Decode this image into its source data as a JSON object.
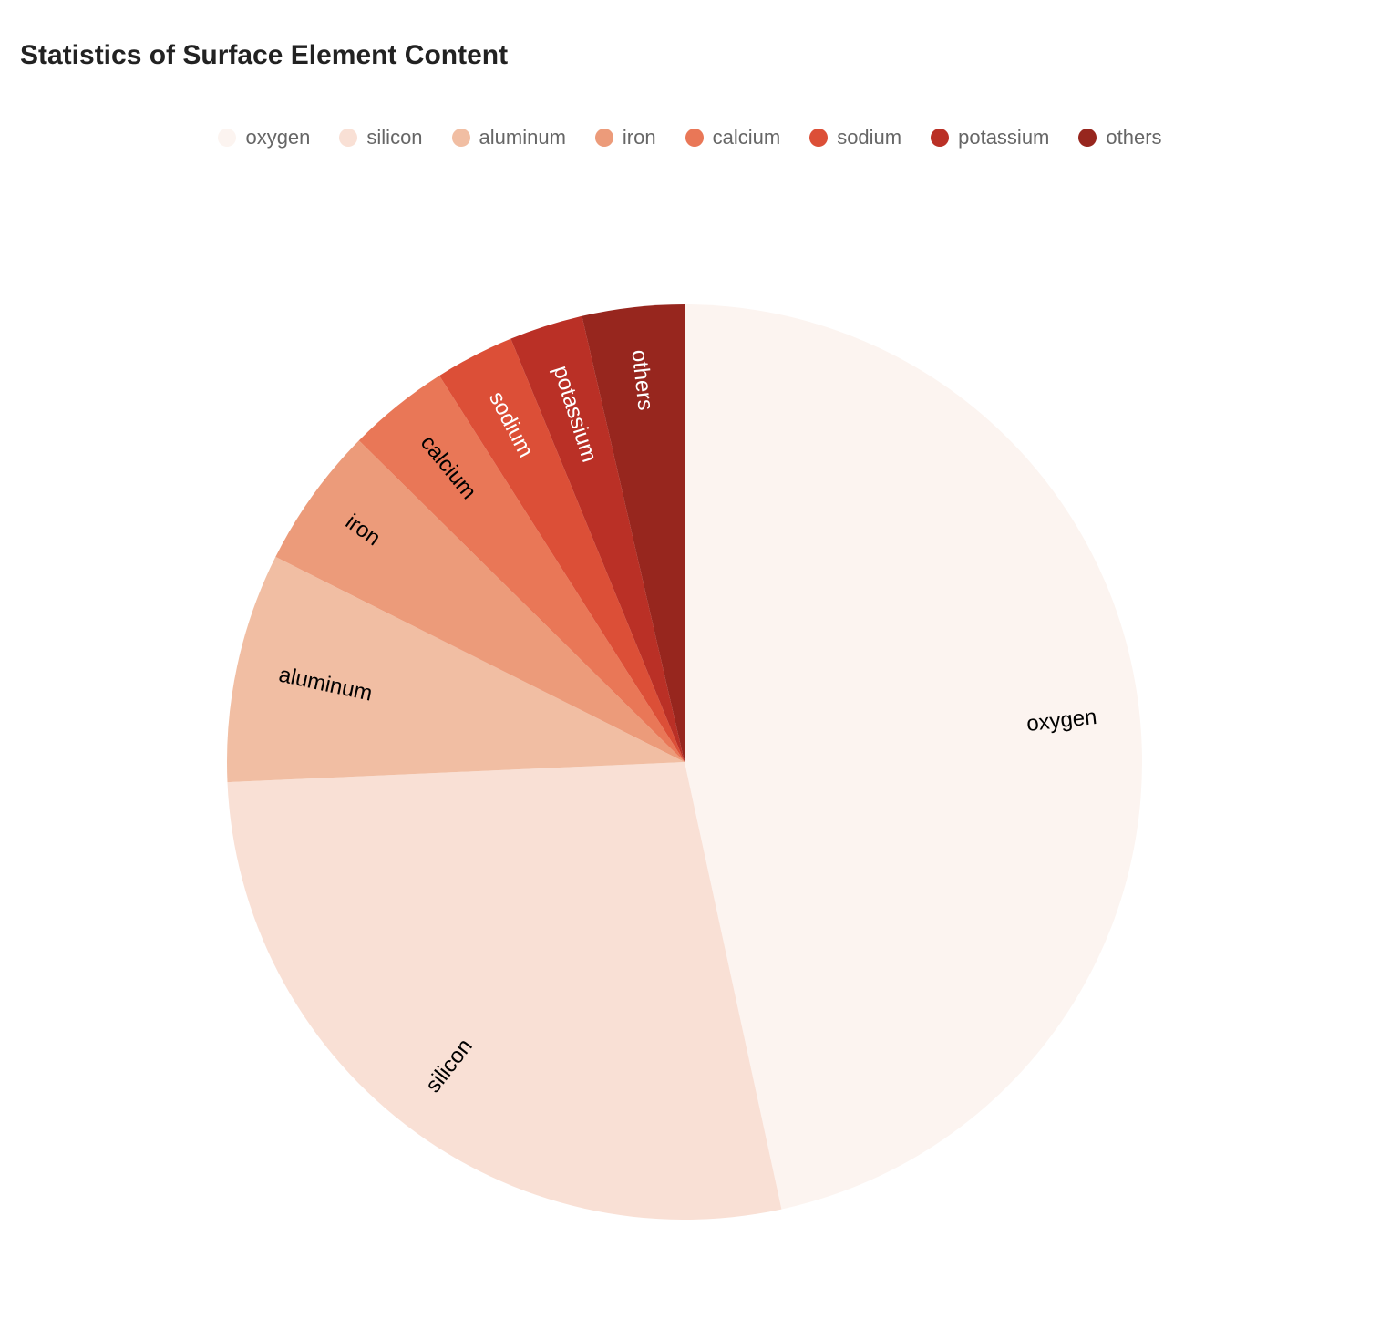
{
  "chart_data": {
    "type": "pie",
    "title": "Statistics of Surface Element Content",
    "legend_placement": "top-center",
    "labels_inside": true,
    "slices": [
      {
        "name": "oxygen",
        "value": 46.6,
        "color": "#fcf4f0"
      },
      {
        "name": "silicon",
        "value": 27.7,
        "color": "#f9e0d5"
      },
      {
        "name": "aluminum",
        "value": 8.1,
        "color": "#f1bea3"
      },
      {
        "name": "iron",
        "value": 5.0,
        "color": "#ec9b7a"
      },
      {
        "name": "calcium",
        "value": 3.6,
        "color": "#e97757"
      },
      {
        "name": "sodium",
        "value": 2.8,
        "color": "#dc4f37"
      },
      {
        "name": "potassium",
        "value": 2.6,
        "color": "#ba3026"
      },
      {
        "name": "others",
        "value": 3.6,
        "color": "#97261e"
      }
    ]
  }
}
